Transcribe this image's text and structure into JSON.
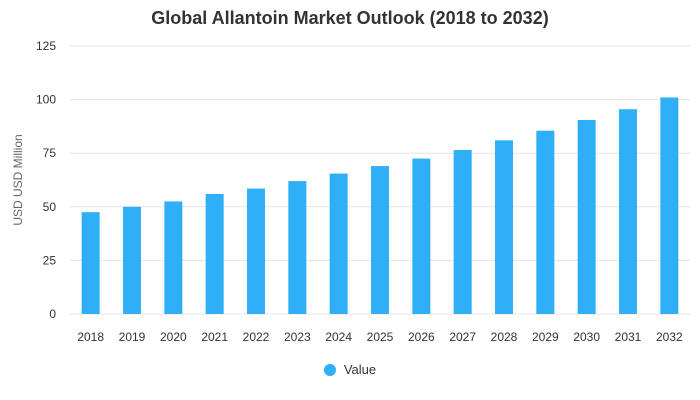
{
  "chart_data": {
    "type": "bar",
    "title": "Global Allantoin Market Outlook (2018 to 2032)",
    "xlabel": "",
    "ylabel": "USD USD Million",
    "categories": [
      "2018",
      "2019",
      "2020",
      "2021",
      "2022",
      "2023",
      "2024",
      "2025",
      "2026",
      "2027",
      "2028",
      "2029",
      "2030",
      "2031",
      "2032"
    ],
    "series": [
      {
        "name": "Value",
        "values": [
          47.5,
          50,
          52.5,
          56,
          58.5,
          62,
          65.5,
          69,
          72.5,
          76.5,
          81,
          85.5,
          90.5,
          95.5,
          101
        ],
        "color": "#2eaff7"
      }
    ],
    "ylim": [
      0,
      125
    ],
    "yticks": [
      0,
      25,
      50,
      75,
      100,
      125
    ],
    "grid": true,
    "legend_position": "bottom",
    "grid_color": "#e6e6e6"
  }
}
